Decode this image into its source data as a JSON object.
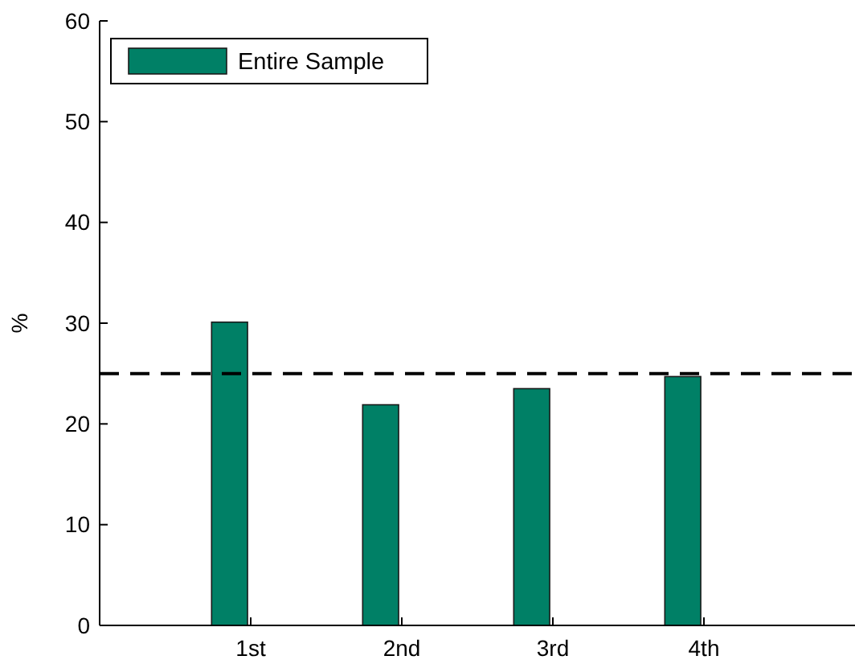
{
  "chart_data": {
    "type": "bar",
    "categories": [
      "1st",
      "2nd",
      "3rd",
      "4th"
    ],
    "series": [
      {
        "name": "Entire Sample",
        "color": "#008066",
        "values": [
          30.1,
          21.9,
          23.5,
          24.7
        ]
      },
      {
        "color": "#000000",
        "values": [
          0,
          0,
          0,
          0
        ]
      }
    ],
    "ylabel": "%",
    "ylim": [
      0,
      60
    ],
    "yticks": [
      0,
      10,
      20,
      30,
      40,
      50,
      60
    ],
    "ref_lines": [
      {
        "axis": "y",
        "value": 25,
        "line_style": "dashed",
        "color": "#000000"
      }
    ],
    "legend": "top left"
  }
}
